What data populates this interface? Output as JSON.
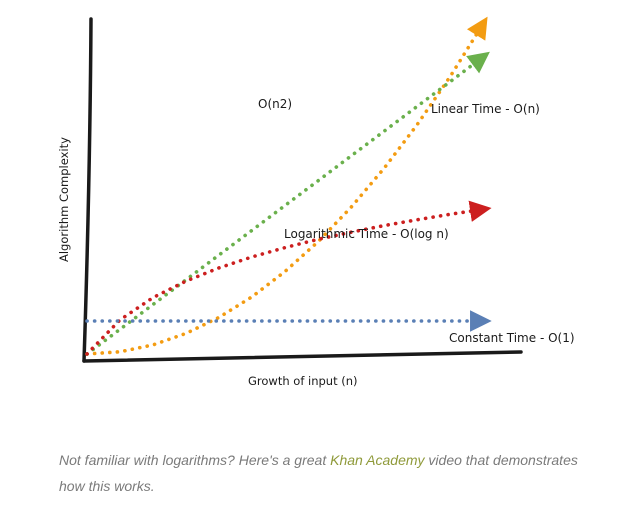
{
  "chart_data": {
    "type": "line",
    "xlabel": "Growth of input (n)",
    "ylabel": "Algorithm Complexity",
    "series": [
      {
        "name": "O(n2)",
        "color": "#f39c12",
        "x": [
          0,
          1,
          2,
          3,
          4,
          5,
          6,
          7,
          8,
          9,
          10,
          11,
          12
        ],
        "y": [
          0,
          0.08,
          0.33,
          0.75,
          1.33,
          2.08,
          3.0,
          4.08,
          5.33,
          6.75,
          8.33,
          10.08,
          12.0
        ]
      },
      {
        "name": "Linear Time - O(n)",
        "color": "#6ab04c",
        "x": [
          0,
          1,
          2,
          3,
          4,
          5,
          6,
          7,
          8,
          9,
          10,
          11,
          12
        ],
        "y": [
          0,
          0.9,
          1.8,
          2.7,
          3.6,
          4.5,
          5.4,
          6.3,
          7.2,
          8.1,
          9.0,
          9.9,
          10.8
        ]
      },
      {
        "name": "Logarithmic Time - O(log n)",
        "color": "#cc1f1f",
        "x": [
          0,
          1,
          2,
          3,
          4,
          5,
          6,
          7,
          8,
          9,
          10,
          11,
          12
        ],
        "y": [
          0,
          1.24,
          2.05,
          2.65,
          3.13,
          3.53,
          3.87,
          4.17,
          4.43,
          4.67,
          4.88,
          5.08,
          5.26
        ]
      },
      {
        "name": "Constant Time - O(1)",
        "color": "#5a7fb5",
        "x": [
          0,
          1,
          2,
          3,
          4,
          5,
          6,
          7,
          8,
          9,
          10,
          11,
          12
        ],
        "y": [
          1.2,
          1.2,
          1.2,
          1.2,
          1.2,
          1.2,
          1.2,
          1.2,
          1.2,
          1.2,
          1.2,
          1.2,
          1.2
        ]
      }
    ],
    "grid": false,
    "legend": "none (labels next to curves)"
  },
  "caption": {
    "before": "Not familiar with logarithms? Here's a great ",
    "link_text": "Khan Academy",
    "after": " video that demonstrates how this works.",
    "link_color": "#8f9a3a"
  }
}
